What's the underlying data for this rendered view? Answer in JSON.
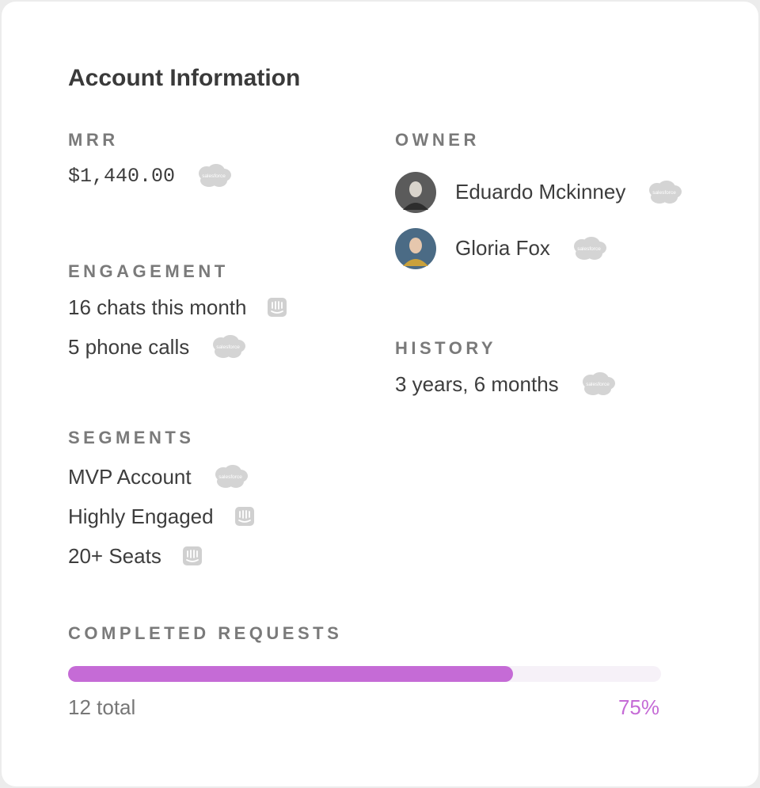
{
  "title": "Account Information",
  "mrr": {
    "label": "MRR",
    "value": "$1,440.00",
    "badge": "salesforce"
  },
  "owner": {
    "label": "OWNER",
    "people": [
      {
        "name": "Eduardo Mckinney",
        "badge": "salesforce"
      },
      {
        "name": "Gloria Fox",
        "badge": "salesforce"
      }
    ]
  },
  "engagement": {
    "label": "ENGAGEMENT",
    "items": [
      {
        "text": "16 chats this month"
      },
      {
        "text": "5 phone calls",
        "badge": "salesforce"
      }
    ]
  },
  "history": {
    "label": "HISTORY",
    "items": [
      {
        "text": "3 years, 6 months",
        "badge": "salesforce"
      }
    ]
  },
  "segments": {
    "label": "SEGMENTS",
    "items": [
      {
        "text": "MVP Account",
        "badge": "salesforce"
      },
      {
        "text": "Highly Engaged"
      },
      {
        "text": "20+ Seats"
      }
    ]
  },
  "progress": {
    "label": "COMPLETED REQUESTS",
    "total": "12 total",
    "value": 75,
    "value_label": "75%"
  }
}
